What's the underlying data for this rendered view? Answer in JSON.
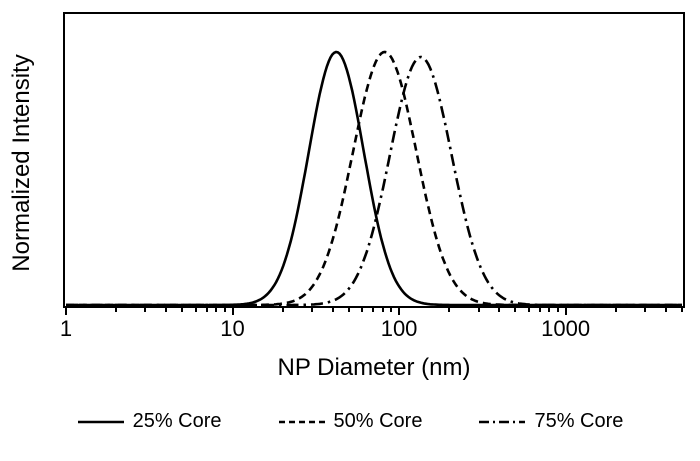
{
  "figure": {
    "background": "#ffffff",
    "foreground": "#000000"
  },
  "chart_data": {
    "type": "line",
    "title": "",
    "xlabel": "NP Diameter (nm)",
    "ylabel": "Normalized Intensity",
    "x_scale": "log",
    "xlim": [
      1,
      5000
    ],
    "ylim": [
      0,
      1.15
    ],
    "x_ticks": [
      1,
      10,
      100,
      1000
    ],
    "y_ticks": [],
    "grid": false,
    "legend_position": "bottom",
    "color": "#000000",
    "series": [
      {
        "name": "25% Core",
        "line_style": "solid",
        "shape": "lognormal",
        "peak_nm": 42,
        "sigma_log10": 0.165,
        "peak_intensity": 1.0,
        "points": [
          [
            15,
            0.03
          ],
          [
            20,
            0.15
          ],
          [
            25,
            0.4
          ],
          [
            30,
            0.68
          ],
          [
            35,
            0.89
          ],
          [
            42,
            1.0
          ],
          [
            50,
            0.9
          ],
          [
            60,
            0.64
          ],
          [
            70,
            0.41
          ],
          [
            85,
            0.18
          ],
          [
            100,
            0.07
          ],
          [
            120,
            0.02
          ],
          [
            150,
            0.0
          ]
        ]
      },
      {
        "name": "50% Core",
        "line_style": "dashed",
        "shape": "lognormal",
        "peak_nm": 82,
        "sigma_log10": 0.19,
        "peak_intensity": 1.0,
        "points": [
          [
            30,
            0.07
          ],
          [
            40,
            0.26
          ],
          [
            50,
            0.53
          ],
          [
            60,
            0.77
          ],
          [
            70,
            0.94
          ],
          [
            82,
            1.0
          ],
          [
            100,
            0.9
          ],
          [
            120,
            0.69
          ],
          [
            150,
            0.39
          ],
          [
            180,
            0.2
          ],
          [
            220,
            0.08
          ],
          [
            270,
            0.02
          ],
          [
            330,
            0.01
          ]
        ]
      },
      {
        "name": "75% Core",
        "line_style": "dashdot",
        "shape": "lognormal",
        "peak_nm": 135,
        "sigma_log10": 0.185,
        "peak_intensity": 0.98,
        "points": [
          [
            50,
            0.07
          ],
          [
            65,
            0.23
          ],
          [
            80,
            0.47
          ],
          [
            95,
            0.71
          ],
          [
            110,
            0.89
          ],
          [
            135,
            0.98
          ],
          [
            160,
            0.92
          ],
          [
            190,
            0.7
          ],
          [
            230,
            0.45
          ],
          [
            280,
            0.23
          ],
          [
            340,
            0.09
          ],
          [
            420,
            0.03
          ],
          [
            520,
            0.01
          ]
        ]
      }
    ]
  }
}
